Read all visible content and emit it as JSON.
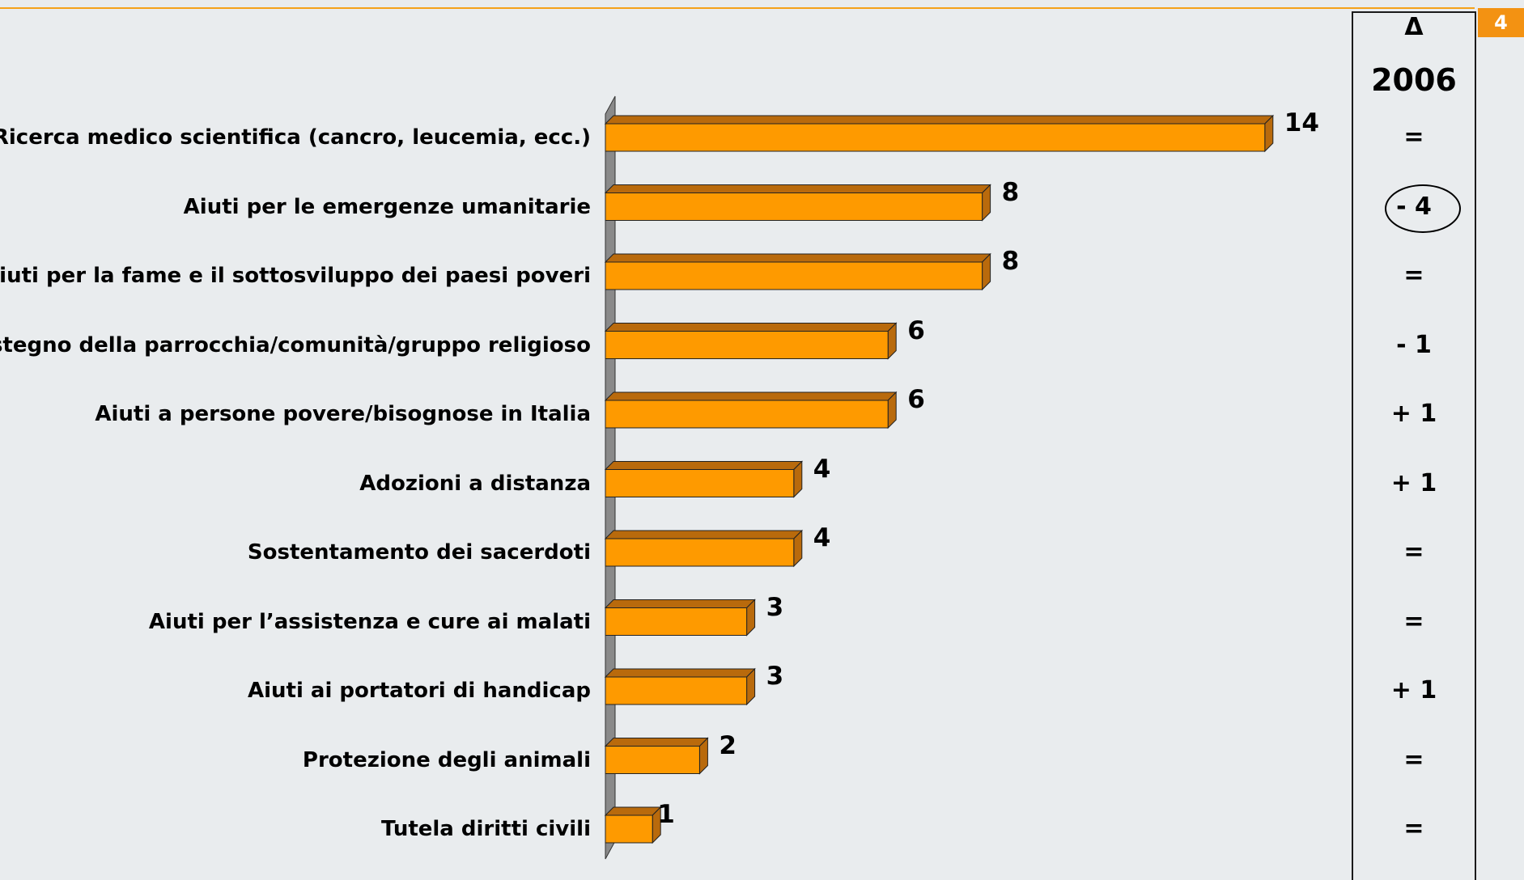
{
  "page_number": "4",
  "delta_header": {
    "symbol": "Δ",
    "year": "2006"
  },
  "chart_data": {
    "type": "bar",
    "orientation": "horizontal",
    "categories": [
      "Ricerca medico scientifica (cancro, leucemia, ecc.)",
      "Aiuti per le emergenze umanitarie",
      "Aiuti per la fame e il sottosviluppo dei paesi poveri",
      "Sostegno della parrocchia/comunità/gruppo religioso",
      "Aiuti a persone povere/bisognose in Italia",
      "Adozioni a distanza",
      "Sostentamento dei sacerdoti",
      "Aiuti per l’assistenza e cure ai malati",
      "Aiuti ai portatori di handicap",
      "Protezione degli animali",
      "Tutela diritti civili"
    ],
    "values": [
      14,
      8,
      8,
      6,
      6,
      4,
      4,
      3,
      3,
      2,
      1
    ],
    "value_labels": [
      "14",
      "8",
      "8",
      "6",
      "6",
      "4",
      "4",
      "3",
      "3",
      "2",
      "1"
    ],
    "deltas": [
      "=",
      "- 4",
      "=",
      "- 1",
      "+ 1",
      "+ 1",
      "=",
      "=",
      "+ 1",
      "=",
      "="
    ],
    "circled_delta_index": 1,
    "bar_color": "#fe9a00",
    "bar_side_color": "#b96a0c",
    "axis_color": "#8a8a8a",
    "xlim": [
      0,
      14
    ],
    "style": "3d",
    "grid": false
  }
}
